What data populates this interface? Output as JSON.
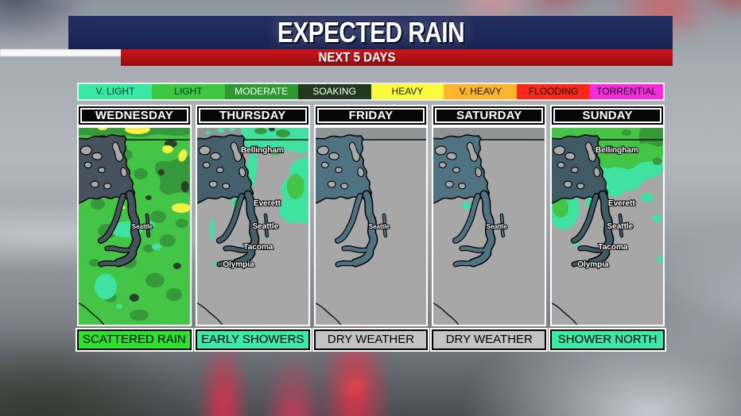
{
  "header": {
    "title": "EXPECTED RAIN",
    "subtitle": "NEXT 5 DAYS",
    "title_bg": "#1c2857",
    "subtitle_bg": "#b01016"
  },
  "legend": {
    "items": [
      {
        "label": "V. LIGHT",
        "color": "#37E8A1",
        "text_color": "#10303c"
      },
      {
        "label": "LIGHT",
        "color": "#3CC83E",
        "text_color": "#10303c"
      },
      {
        "label": "MODERATE",
        "color": "#2E9832",
        "text_color": "#ffffff"
      },
      {
        "label": "SOAKING",
        "color": "#20391F",
        "text_color": "#ffffff"
      },
      {
        "label": "HEAVY",
        "color": "#FAFA3A",
        "text_color": "#1c1c1c"
      },
      {
        "label": "V. HEAVY",
        "color": "#FBB42B",
        "text_color": "#1c1c1c"
      },
      {
        "label": "FLOODING",
        "color": "#FB271B",
        "text_color": "#111111"
      },
      {
        "label": "TORRENTIAL",
        "color": "#F52BDC",
        "text_color": "#111111"
      }
    ]
  },
  "map_palette": {
    "land": "#a8a8a8",
    "north_band": "#8e9494",
    "water_wet": "#46535e",
    "water_dry": "#507383"
  },
  "panels": [
    {
      "day": "WEDNESDAY",
      "condition": "SCATTERED RAIN",
      "condition_bg": "#2CE22C",
      "map": "wednesday",
      "water": "#46535e",
      "cities": [
        "Seattle"
      ]
    },
    {
      "day": "THURSDAY",
      "condition": "EARLY SHOWERS",
      "condition_bg": "#3CE9A8",
      "map": "thursday",
      "water": "#44606c",
      "cities": [
        "Bellingham",
        "Everett",
        "Seattle",
        "Tacoma",
        "Olympia"
      ]
    },
    {
      "day": "FRIDAY",
      "condition": "DRY WEATHER",
      "condition_bg": "#C3C3C3",
      "map": "friday",
      "water": "#507383",
      "cities": [
        "Seattle"
      ]
    },
    {
      "day": "SATURDAY",
      "condition": "DRY WEATHER",
      "condition_bg": "#C3C3C3",
      "map": "saturday",
      "water": "#507383",
      "cities": [
        "Seattle"
      ]
    },
    {
      "day": "SUNDAY",
      "condition": "SHOWER NORTH",
      "condition_bg": "#3CE9A8",
      "map": "sunday",
      "water": "#405a66",
      "cities": [
        "Bellingham",
        "Everett",
        "Seattle",
        "Tacoma",
        "Olympia"
      ]
    }
  ]
}
